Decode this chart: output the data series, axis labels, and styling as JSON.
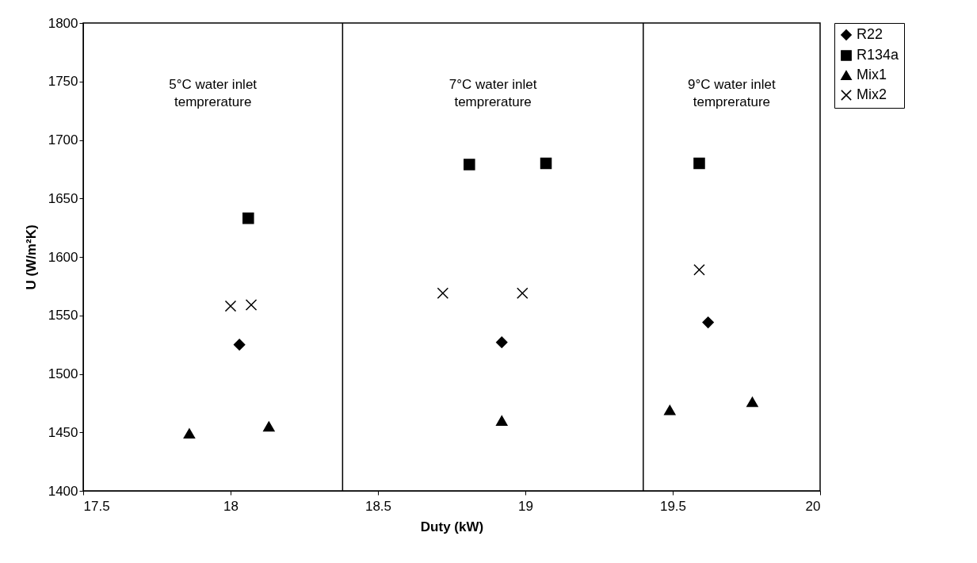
{
  "chart_data": {
    "type": "scatter",
    "xlabel": "Duty (kW)",
    "ylabel": "U (W/m²K)",
    "xlim": [
      17.5,
      20
    ],
    "xticks": [
      17.5,
      18,
      18.5,
      19,
      19.5,
      20
    ],
    "ylim": [
      1400,
      1800
    ],
    "yticks": [
      1400,
      1450,
      1500,
      1550,
      1600,
      1650,
      1700,
      1750,
      1800
    ],
    "grid": false,
    "legend": "right",
    "ref_lines": [
      {
        "axis": "x",
        "value": 18.38
      },
      {
        "axis": "x",
        "value": 19.4
      }
    ],
    "annotations": [
      "5°C water inlet\ntemprerature",
      "7°C water inlet\ntemprerature",
      "9°C water inlet\ntemprerature"
    ],
    "series": [
      {
        "name": "R22",
        "color": "#000000",
        "marker": "diamond",
        "x": [
          18.03,
          18.92,
          19.62
        ],
        "values": [
          1525,
          1527,
          1544
        ]
      },
      {
        "name": "R134a",
        "color": "#000000",
        "marker": "square",
        "x": [
          18.06,
          18.81,
          19.07,
          19.59
        ],
        "values": [
          1633,
          1679,
          1680,
          1680
        ]
      },
      {
        "name": "Mix1",
        "color": "#000000",
        "marker": "triangle",
        "x": [
          17.86,
          18.13,
          18.92,
          19.49,
          19.77
        ],
        "values": [
          1449,
          1455,
          1460,
          1469,
          1476
        ]
      },
      {
        "name": "Mix2",
        "color": "#000000",
        "marker": "cross",
        "x": [
          18.0,
          18.07,
          18.72,
          18.99,
          19.59
        ],
        "values": [
          1558,
          1559,
          1569,
          1569,
          1589
        ]
      }
    ]
  }
}
